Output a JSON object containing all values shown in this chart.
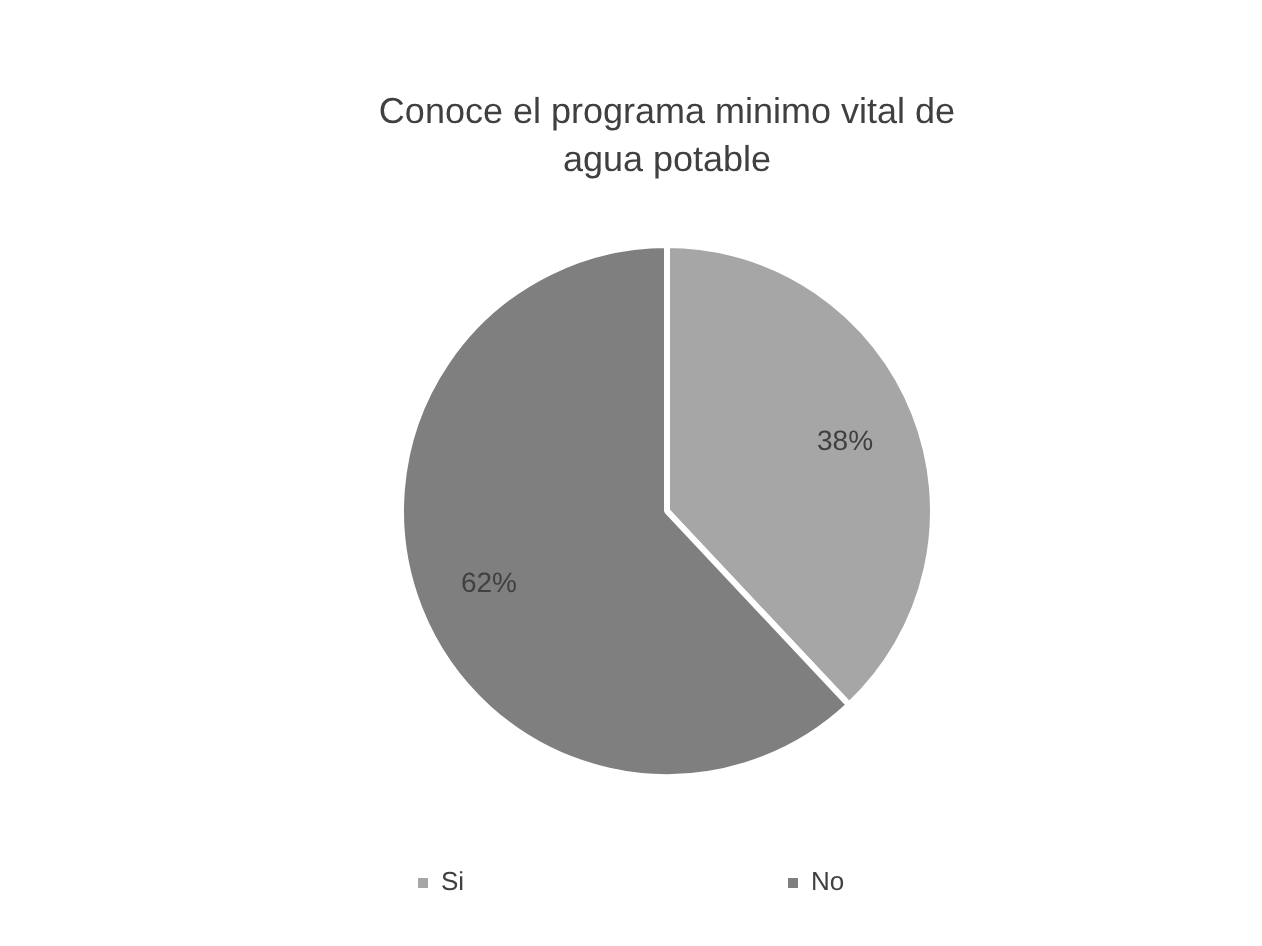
{
  "chart_data": {
    "type": "pie",
    "title": "Conoce el programa minimo vital de agua potable",
    "categories": [
      "Si",
      "No"
    ],
    "values": [
      38,
      62
    ],
    "colors": [
      "#a6a6a6",
      "#7f7f7f"
    ],
    "value_labels": [
      "38%",
      "62%"
    ],
    "legend": "bottom"
  }
}
